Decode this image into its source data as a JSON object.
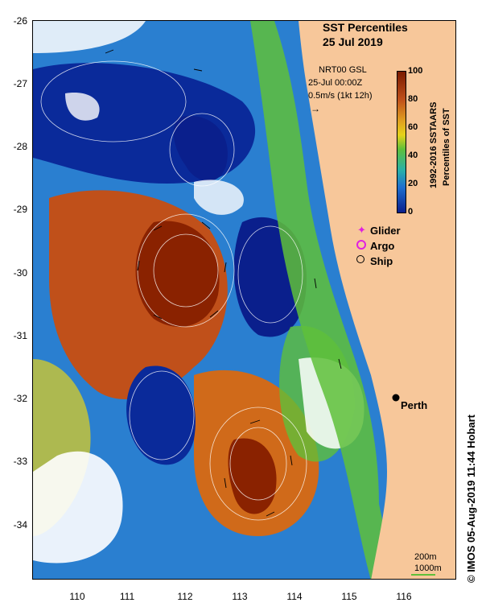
{
  "title": {
    "line1": "SST Percentiles",
    "line2": "25 Jul 2019"
  },
  "current_info": {
    "source": "NRT00 GSL",
    "time": "25-Jul 00:00Z",
    "scale": "0.5m/s (1kt 12h)"
  },
  "colorbar": {
    "ticks": [
      "100",
      "80",
      "60",
      "40",
      "20",
      "0"
    ],
    "label_line1": "1992-2016 SSTAARS",
    "label_line2": "Percentiles of SST",
    "colors": [
      "#7a1a00",
      "#c0501a",
      "#e0a020",
      "#e6d21a",
      "#5fbf3a",
      "#29b0a8",
      "#1f6fcf",
      "#0a1f8c"
    ]
  },
  "legend": {
    "glider": "Glider",
    "argo": "Argo",
    "ship": "Ship"
  },
  "place_label": "Perth",
  "scale_bar": {
    "label1": "200m",
    "label2": "1000m"
  },
  "credit": "© IMOS 05-Aug-2019 11:44 Hobart",
  "axes": {
    "y_ticks": [
      "-26",
      "-27",
      "-28",
      "-29",
      "-30",
      "-31",
      "-32",
      "-33",
      "-34"
    ],
    "x_ticks": [
      "110",
      "111",
      "112",
      "113",
      "114",
      "115",
      "116"
    ]
  },
  "colors": {
    "land": "#f7c79a",
    "ocean_low": "#0a1f8c",
    "ocean_high": "#7a1a00"
  }
}
